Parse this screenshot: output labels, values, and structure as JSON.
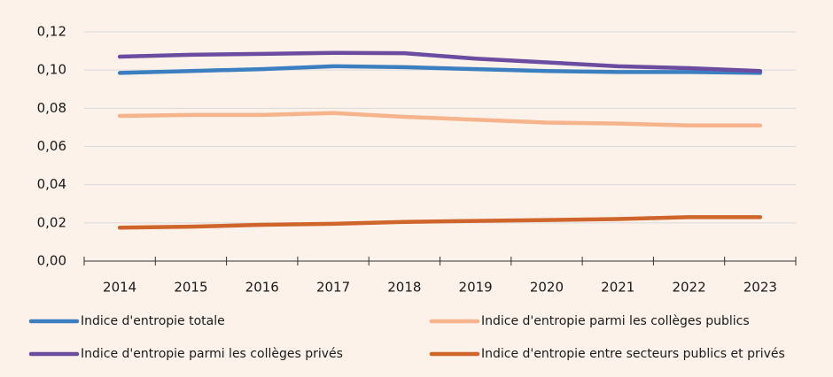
{
  "chart_data": {
    "type": "line",
    "categories": [
      "2014",
      "2015",
      "2016",
      "2017",
      "2018",
      "2019",
      "2020",
      "2021",
      "2022",
      "2023"
    ],
    "series": [
      {
        "name": "Indice d'entropie totale",
        "color": "#3b7fc0",
        "values": [
          0.0985,
          0.0995,
          0.1005,
          0.102,
          0.1015,
          0.1005,
          0.0995,
          0.099,
          0.099,
          0.0985
        ]
      },
      {
        "name": "Indice d'entropie parmi les collèges publics",
        "color": "#f6b38c",
        "values": [
          0.076,
          0.0765,
          0.0765,
          0.0775,
          0.0755,
          0.074,
          0.0725,
          0.072,
          0.071,
          0.071
        ]
      },
      {
        "name": "Indice d'entropie parmi les collèges privés",
        "color": "#6b4ca1",
        "values": [
          0.107,
          0.108,
          0.1085,
          0.109,
          0.1088,
          0.106,
          0.104,
          0.102,
          0.101,
          0.0995
        ]
      },
      {
        "name": "Indice d'entropie entre secteurs publics et privés",
        "color": "#d0652c",
        "values": [
          0.0175,
          0.018,
          0.019,
          0.0195,
          0.0205,
          0.021,
          0.0215,
          0.022,
          0.023,
          0.023
        ]
      }
    ],
    "ylim": [
      0,
      0.12
    ],
    "yticks": [
      {
        "value": 0,
        "label": "0,00"
      },
      {
        "value": 0.02,
        "label": "0,02"
      },
      {
        "value": 0.04,
        "label": "0,04"
      },
      {
        "value": 0.06,
        "label": "0,06"
      },
      {
        "value": 0.08,
        "label": "0,08"
      },
      {
        "value": 0.1,
        "label": "0,10"
      },
      {
        "value": 0.12,
        "label": "0,12"
      }
    ],
    "grid": true
  }
}
